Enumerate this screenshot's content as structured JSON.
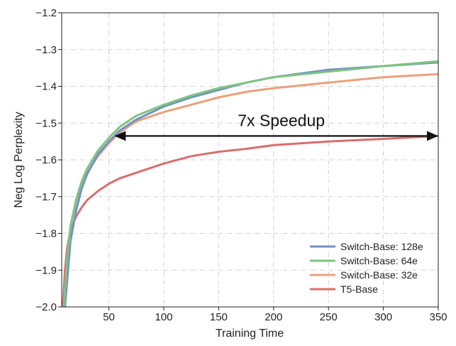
{
  "chart_data": {
    "type": "line",
    "title": "",
    "xlabel": "Training Time",
    "ylabel": "Neg Log Perplexity",
    "xlim": [
      7,
      350
    ],
    "ylim": [
      -2.0,
      -1.2
    ],
    "x_ticks": [
      50,
      100,
      150,
      200,
      250,
      300,
      350
    ],
    "y_ticks": [
      -2.0,
      -1.9,
      -1.8,
      -1.7,
      -1.6,
      -1.5,
      -1.4,
      -1.3,
      -1.2
    ],
    "y_tick_labels": [
      "−2.0",
      "−1.9",
      "−1.8",
      "−1.7",
      "−1.6",
      "−1.5",
      "−1.4",
      "−1.3",
      "−1.2"
    ],
    "grid": true,
    "legend_position": "lower-right",
    "series": [
      {
        "name": "Switch-Base: 128e",
        "color": "#7391c6",
        "x": [
          10,
          15,
          20,
          25,
          30,
          40,
          50,
          60,
          75,
          100,
          125,
          150,
          175,
          200,
          250,
          300,
          350
        ],
        "y": [
          -2.0,
          -1.82,
          -1.74,
          -1.68,
          -1.64,
          -1.585,
          -1.55,
          -1.52,
          -1.49,
          -1.455,
          -1.43,
          -1.41,
          -1.39,
          -1.375,
          -1.355,
          -1.345,
          -1.335
        ]
      },
      {
        "name": "Switch-Base: 64e",
        "color": "#7dc481",
        "x": [
          9,
          12,
          15,
          20,
          25,
          30,
          40,
          50,
          60,
          75,
          100,
          125,
          150,
          175,
          200,
          250,
          300,
          350
        ],
        "y": [
          -2.0,
          -1.87,
          -1.78,
          -1.71,
          -1.66,
          -1.625,
          -1.575,
          -1.54,
          -1.51,
          -1.48,
          -1.45,
          -1.425,
          -1.405,
          -1.39,
          -1.375,
          -1.36,
          -1.345,
          -1.332
        ]
      },
      {
        "name": "Switch-Base: 32e",
        "color": "#eba07a",
        "x": [
          9,
          12,
          15,
          20,
          25,
          30,
          40,
          50,
          60,
          75,
          100,
          125,
          150,
          175,
          200,
          250,
          300,
          350
        ],
        "y": [
          -2.0,
          -1.87,
          -1.78,
          -1.715,
          -1.67,
          -1.635,
          -1.59,
          -1.555,
          -1.525,
          -1.495,
          -1.47,
          -1.45,
          -1.43,
          -1.415,
          -1.405,
          -1.39,
          -1.375,
          -1.367
        ]
      },
      {
        "name": "T5-Base",
        "color": "#d96e6e",
        "x": [
          8,
          10,
          12,
          15,
          20,
          25,
          30,
          40,
          50,
          60,
          75,
          100,
          125,
          150,
          175,
          200,
          250,
          300,
          350
        ],
        "y": [
          -2.0,
          -1.9,
          -1.84,
          -1.79,
          -1.755,
          -1.73,
          -1.71,
          -1.685,
          -1.665,
          -1.65,
          -1.635,
          -1.61,
          -1.59,
          -1.578,
          -1.57,
          -1.56,
          -1.55,
          -1.543,
          -1.535
        ]
      }
    ],
    "annotations": [
      {
        "text": "7x Speedup",
        "arrow_from": [
          55,
          -1.535
        ],
        "arrow_to": [
          350,
          -1.535
        ]
      }
    ]
  }
}
